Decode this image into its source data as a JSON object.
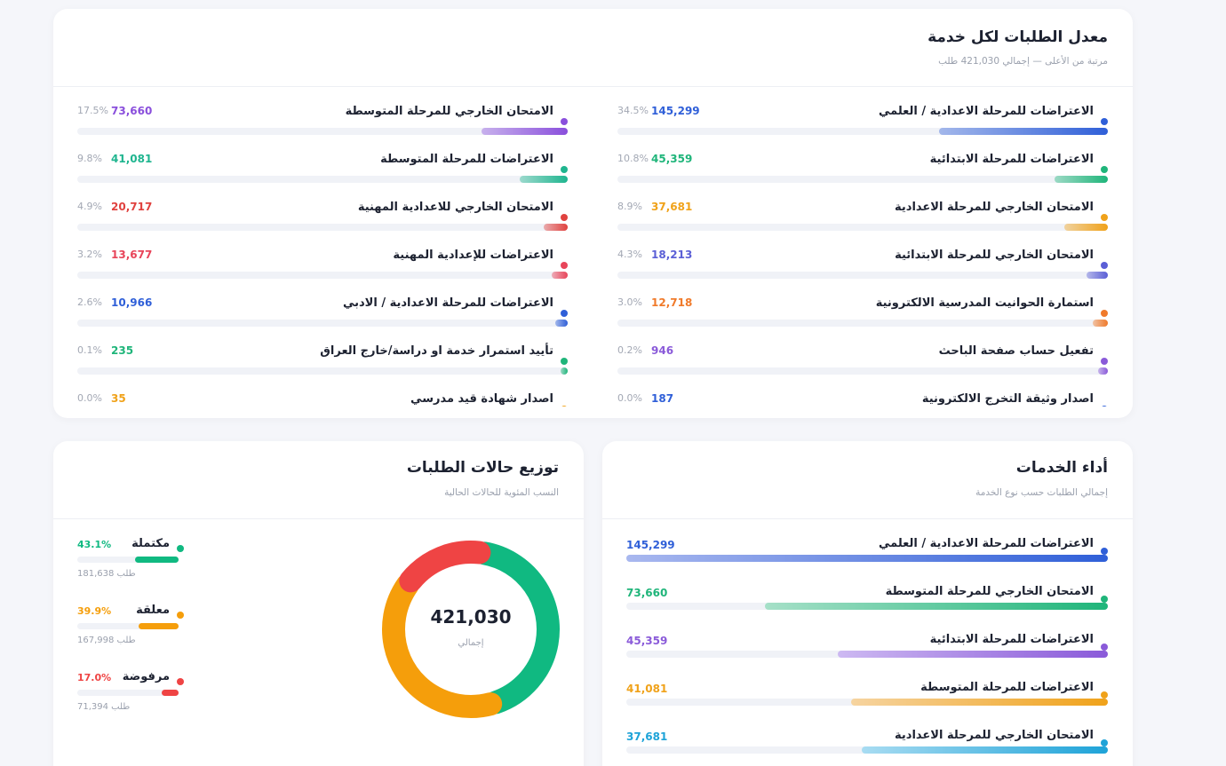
{
  "requests_card": {
    "title": "معدل الطلبات لكل خدمة",
    "subtitle": "مرتبة من الأعلى — إجمالي 421,030 طلب",
    "right_column": [
      {
        "name": "الاعتراضات للمرحلة الاعدادية / العلمي",
        "value": "145,299",
        "percent": "34.5%",
        "fill": 0.345,
        "color": "#2f5fd8"
      },
      {
        "name": "الاعتراضات للمرحلة الابتدائية",
        "value": "45,359",
        "percent": "10.8%",
        "fill": 0.108,
        "color": "#1fb57a"
      },
      {
        "name": "الامتحان الخارجي للمرحلة الاعدادية",
        "value": "37,681",
        "percent": "8.9%",
        "fill": 0.089,
        "color": "#f0a21a"
      },
      {
        "name": "الامتحان الخارجي للمرحلة الابتدائية",
        "value": "18,213",
        "percent": "4.3%",
        "fill": 0.043,
        "color": "#5b5fd6"
      },
      {
        "name": "استمارة الحوانيت المدرسية الالكترونية",
        "value": "12,718",
        "percent": "3.0%",
        "fill": 0.03,
        "color": "#f07a2a"
      },
      {
        "name": "تفعيل حساب صفحة الباحث",
        "value": "946",
        "percent": "0.2%",
        "fill": 0.02,
        "color": "#8a5ad9"
      },
      {
        "name": "اصدار وثيقة التخرج الالكترونية",
        "value": "187",
        "percent": "0.0%",
        "fill": 0.01,
        "color": "#2f5fd8"
      }
    ],
    "left_column": [
      {
        "name": "الامتحان الخارجي للمرحلة المتوسطة",
        "value": "73,660",
        "percent": "17.5%",
        "fill": 0.175,
        "color": "#8a4fdc"
      },
      {
        "name": "الاعتراضات للمرحلة المتوسطة",
        "value": "41,081",
        "percent": "9.8%",
        "fill": 0.098,
        "color": "#1fb58f"
      },
      {
        "name": "الامتحان الخارجي للاعدادية المهنية",
        "value": "20,717",
        "percent": "4.9%",
        "fill": 0.049,
        "color": "#e0423f"
      },
      {
        "name": "الاعتراضات للإعدادية المهنية",
        "value": "13,677",
        "percent": "3.2%",
        "fill": 0.032,
        "color": "#e8455a"
      },
      {
        "name": "الاعتراضات للمرحلة الاعدادية / الادبي",
        "value": "10,966",
        "percent": "2.6%",
        "fill": 0.026,
        "color": "#2f5fd8"
      },
      {
        "name": "تأييد استمرار خدمة او دراسة/خارج العراق",
        "value": "235",
        "percent": "0.1%",
        "fill": 0.015,
        "color": "#1fb57a"
      },
      {
        "name": "اصدار شهادة قيد مدرسي",
        "value": "35",
        "percent": "0.0%",
        "fill": 0.01,
        "color": "#f0a21a"
      }
    ]
  },
  "status_card": {
    "title": "توزيع حالات الطلبات",
    "subtitle": "النسب المئوية للحالات الحالية",
    "total": "421,030",
    "total_label": "إجمالي",
    "items": [
      {
        "name": "مكتملة",
        "percent": "43.1%",
        "fraction": 0.431,
        "count": "181,638 طلب",
        "color": "#10b981"
      },
      {
        "name": "معلقة",
        "percent": "39.9%",
        "fraction": 0.399,
        "count": "167,998 طلب",
        "color": "#f59e0b"
      },
      {
        "name": "مرفوضة",
        "percent": "17.0%",
        "fraction": 0.17,
        "count": "71,394 طلب",
        "color": "#ef4444"
      }
    ]
  },
  "performance_card": {
    "title": "أداء الخدمات",
    "subtitle": "إجمالي الطلبات حسب نوع الخدمة",
    "items": [
      {
        "name": "الاعتراضات للمرحلة الاعدادية / العلمي",
        "value": "145,299",
        "fill": 1.0,
        "color": "#2f5fd8",
        "light": "#a9b8ef"
      },
      {
        "name": "الامتحان الخارجي للمرحلة المتوسطة",
        "value": "73,660",
        "fill": 0.713,
        "color": "#1fb57a",
        "light": "#a6e0c8"
      },
      {
        "name": "الاعتراضات للمرحلة الابتدائية",
        "value": "45,359",
        "fill": 0.56,
        "color": "#8a5ad9",
        "light": "#cdb9f2"
      },
      {
        "name": "الاعتراضات للمرحلة المتوسطة",
        "value": "41,081",
        "fill": 0.533,
        "color": "#f0a21a",
        "light": "#f6d4a0"
      },
      {
        "name": "الامتحان الخارجي للمرحلة الاعدادية",
        "value": "37,681",
        "fill": 0.512,
        "color": "#1ea3d8",
        "light": "#a8dcf2"
      }
    ]
  }
}
